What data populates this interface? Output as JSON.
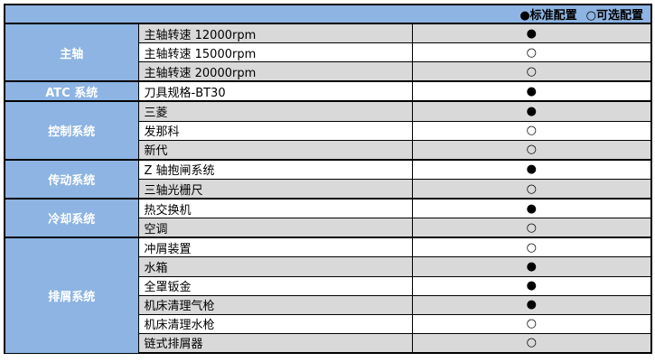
{
  "header": {
    "legend_standard": "●标准配置",
    "legend_optional": "○可选配置"
  },
  "symbols": {
    "standard": "●",
    "optional": "○"
  },
  "colors": {
    "header_bg": "#8db4e2",
    "category_bg": "#8db4e2",
    "category_text": "#ffffff",
    "row_alt_bg": "#d9d9d9",
    "row_bg": "#ffffff",
    "border": "#000000"
  },
  "groups": [
    {
      "category": "主轴",
      "items": [
        {
          "label": "主轴转速 12000rpm",
          "config": "standard"
        },
        {
          "label": "主轴转速 15000rpm",
          "config": "optional"
        },
        {
          "label": "主轴转速 20000rpm",
          "config": "optional"
        }
      ]
    },
    {
      "category": "ATC 系统",
      "items": [
        {
          "label": "刀具规格-BT30",
          "config": "standard"
        }
      ]
    },
    {
      "category": "控制系统",
      "items": [
        {
          "label": "三菱",
          "config": "standard"
        },
        {
          "label": "发那科",
          "config": "optional"
        },
        {
          "label": "新代",
          "config": "optional"
        }
      ]
    },
    {
      "category": "传动系统",
      "items": [
        {
          "label": "Z 轴抱闸系统",
          "config": "standard"
        },
        {
          "label": "三轴光栅尺",
          "config": "optional"
        }
      ]
    },
    {
      "category": "冷却系统",
      "items": [
        {
          "label": "热交换机",
          "config": "standard"
        },
        {
          "label": "空调",
          "config": "optional"
        }
      ]
    },
    {
      "category": "排屑系统",
      "items": [
        {
          "label": "冲屑装置",
          "config": "optional"
        },
        {
          "label": "水箱",
          "config": "standard"
        },
        {
          "label": "全罩钣金",
          "config": "standard"
        },
        {
          "label": "机床清理气枪",
          "config": "standard"
        },
        {
          "label": "机床清理水枪",
          "config": "optional"
        },
        {
          "label": "链式排屑器",
          "config": "optional"
        }
      ]
    }
  ]
}
